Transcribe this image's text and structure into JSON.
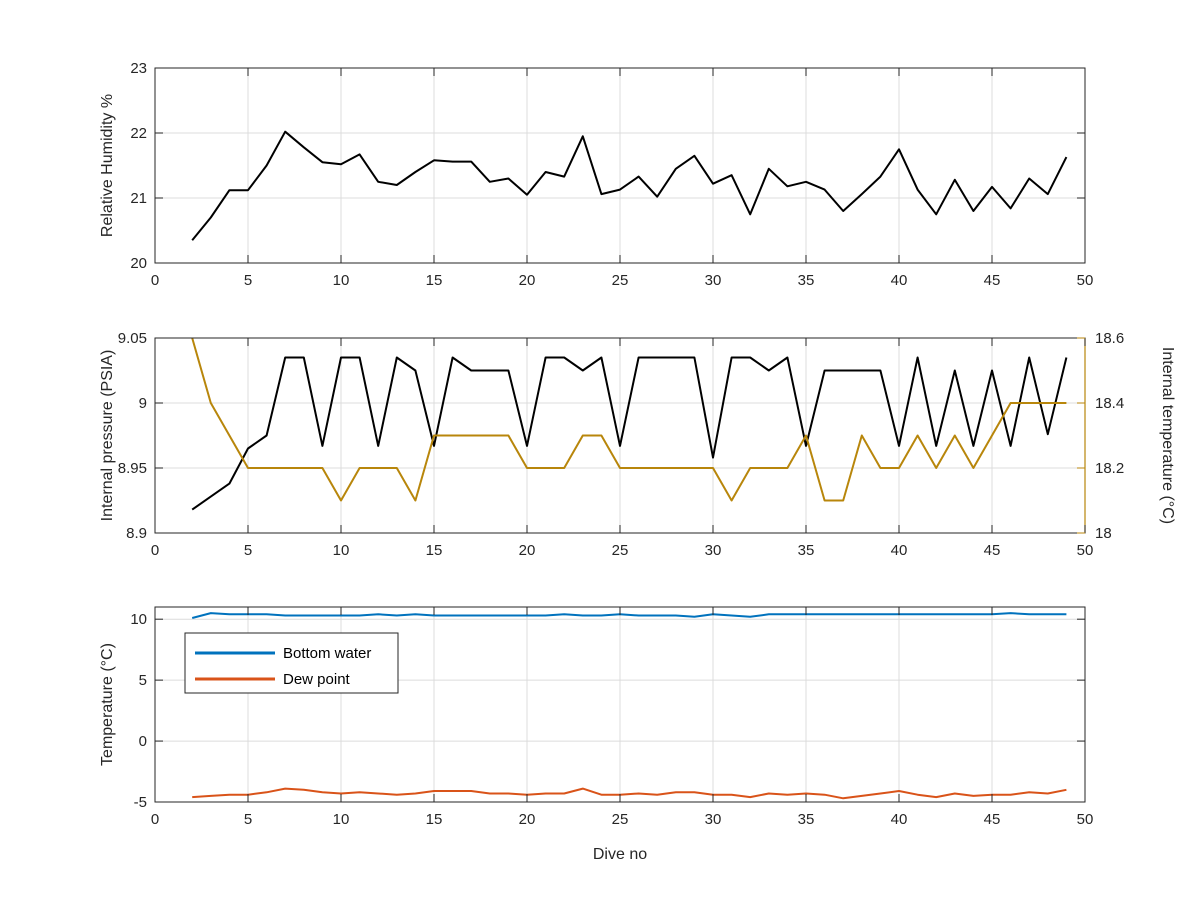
{
  "colors": {
    "axis": "#262626",
    "grid": "#dcdcdc",
    "humidity_line": "#000000",
    "pressure_line": "#000000",
    "internal_temperature": "#b8860b",
    "bottom_water": "#0072bd",
    "dew_point": "#d95319"
  },
  "chart_data": [
    {
      "type": "line",
      "xlabel": "",
      "ylabel": "Relative Humidity %",
      "xlim": [
        0,
        50
      ],
      "ylim": [
        20,
        23
      ],
      "xticks": [
        "0",
        "5",
        "10",
        "15",
        "20",
        "25",
        "30",
        "35",
        "40",
        "45",
        "50"
      ],
      "yticks": [
        "20",
        "21",
        "22",
        "23"
      ],
      "grid": true,
      "x": [
        2,
        3,
        4,
        5,
        6,
        7,
        8,
        9,
        10,
        11,
        12,
        13,
        14,
        15,
        16,
        17,
        18,
        19,
        20,
        21,
        22,
        23,
        24,
        25,
        26,
        27,
        28,
        29,
        30,
        31,
        32,
        33,
        34,
        35,
        36,
        37,
        38,
        39,
        40,
        41,
        42,
        43,
        44,
        45,
        46,
        47,
        48,
        49
      ],
      "series": [
        {
          "values": [
            20.35,
            20.7,
            21.12,
            21.12,
            21.5,
            22.02,
            21.78,
            21.55,
            21.52,
            21.67,
            21.25,
            21.2,
            21.4,
            21.58,
            21.56,
            21.56,
            21.25,
            21.3,
            21.05,
            21.4,
            21.33,
            21.95,
            21.06,
            21.13,
            21.33,
            21.02,
            21.45,
            21.65,
            21.22,
            21.35,
            20.75,
            21.45,
            21.18,
            21.25,
            21.13,
            20.8,
            21.06,
            21.33,
            21.75,
            21.13,
            20.75,
            21.28,
            20.8,
            21.17,
            20.84,
            21.3,
            21.06,
            21.63
          ]
        }
      ]
    },
    {
      "type": "line",
      "xlabel": "",
      "ylabel": "Internal pressure (PSIA)",
      "ylabel_right": "Internal temperature (°C)",
      "xlim": [
        0,
        50
      ],
      "ylim": [
        8.9,
        9.05
      ],
      "ylim_right": [
        18,
        18.6
      ],
      "xticks": [
        "0",
        "5",
        "10",
        "15",
        "20",
        "25",
        "30",
        "35",
        "40",
        "45",
        "50"
      ],
      "yticks": [
        "8.9",
        "8.95",
        "9",
        "9.05"
      ],
      "yticks_right": [
        "18",
        "18.2",
        "18.4",
        "18.6"
      ],
      "grid": true,
      "x": [
        2,
        3,
        4,
        5,
        6,
        7,
        8,
        9,
        10,
        11,
        12,
        13,
        14,
        15,
        16,
        17,
        18,
        19,
        20,
        21,
        22,
        23,
        24,
        25,
        26,
        27,
        28,
        29,
        30,
        31,
        32,
        33,
        34,
        35,
        36,
        37,
        38,
        39,
        40,
        41,
        42,
        43,
        44,
        45,
        46,
        47,
        48,
        49
      ],
      "series": [
        {
          "axis": "left",
          "values": [
            8.918,
            8.928,
            8.938,
            8.965,
            8.975,
            9.035,
            9.035,
            8.967,
            9.035,
            9.035,
            8.967,
            9.035,
            9.025,
            8.967,
            9.035,
            9.025,
            9.025,
            9.025,
            8.967,
            9.035,
            9.035,
            9.025,
            9.035,
            8.967,
            9.035,
            9.035,
            9.035,
            9.035,
            8.958,
            9.035,
            9.035,
            9.025,
            9.035,
            8.967,
            9.025,
            9.025,
            9.025,
            9.025,
            8.967,
            9.035,
            8.967,
            9.025,
            8.967,
            9.025,
            8.967,
            9.035,
            8.976,
            9.035
          ]
        },
        {
          "axis": "right",
          "values": [
            18.6,
            18.4,
            18.3,
            18.2,
            18.2,
            18.2,
            18.2,
            18.2,
            18.1,
            18.2,
            18.2,
            18.2,
            18.1,
            18.3,
            18.3,
            18.3,
            18.3,
            18.3,
            18.2,
            18.2,
            18.2,
            18.3,
            18.3,
            18.2,
            18.2,
            18.2,
            18.2,
            18.2,
            18.2,
            18.1,
            18.2,
            18.2,
            18.2,
            18.3,
            18.1,
            18.1,
            18.3,
            18.2,
            18.2,
            18.3,
            18.2,
            18.3,
            18.2,
            18.3,
            18.4,
            18.4,
            18.4,
            18.4
          ]
        }
      ]
    },
    {
      "type": "line",
      "xlabel": "Dive no",
      "ylabel": "Temperature (°C)",
      "xlim": [
        0,
        50
      ],
      "ylim": [
        -5,
        11
      ],
      "xticks": [
        "0",
        "5",
        "10",
        "15",
        "20",
        "25",
        "30",
        "35",
        "40",
        "45",
        "50"
      ],
      "yticks": [
        "-5",
        "0",
        "5",
        "10"
      ],
      "grid": true,
      "legend": "top-left",
      "x": [
        2,
        3,
        4,
        5,
        6,
        7,
        8,
        9,
        10,
        11,
        12,
        13,
        14,
        15,
        16,
        17,
        18,
        19,
        20,
        21,
        22,
        23,
        24,
        25,
        26,
        27,
        28,
        29,
        30,
        31,
        32,
        33,
        34,
        35,
        36,
        37,
        38,
        39,
        40,
        41,
        42,
        43,
        44,
        45,
        46,
        47,
        48,
        49
      ],
      "series": [
        {
          "name": "Bottom water",
          "values": [
            10.1,
            10.5,
            10.4,
            10.4,
            10.4,
            10.3,
            10.3,
            10.3,
            10.3,
            10.3,
            10.4,
            10.3,
            10.4,
            10.3,
            10.3,
            10.3,
            10.3,
            10.3,
            10.3,
            10.3,
            10.4,
            10.3,
            10.3,
            10.4,
            10.3,
            10.3,
            10.3,
            10.2,
            10.4,
            10.3,
            10.2,
            10.4,
            10.4,
            10.4,
            10.4,
            10.4,
            10.4,
            10.4,
            10.4,
            10.4,
            10.4,
            10.4,
            10.4,
            10.4,
            10.5,
            10.4,
            10.4,
            10.4
          ]
        },
        {
          "name": "Dew point",
          "values": [
            -4.6,
            -4.5,
            -4.4,
            -4.4,
            -4.2,
            -3.9,
            -4.0,
            -4.2,
            -4.3,
            -4.2,
            -4.3,
            -4.4,
            -4.3,
            -4.1,
            -4.1,
            -4.1,
            -4.3,
            -4.3,
            -4.4,
            -4.3,
            -4.3,
            -3.9,
            -4.4,
            -4.4,
            -4.3,
            -4.4,
            -4.2,
            -4.2,
            -4.4,
            -4.4,
            -4.6,
            -4.3,
            -4.4,
            -4.3,
            -4.4,
            -4.7,
            -4.5,
            -4.3,
            -4.1,
            -4.4,
            -4.6,
            -4.3,
            -4.5,
            -4.4,
            -4.4,
            -4.2,
            -4.3,
            -4.0
          ]
        }
      ]
    }
  ]
}
